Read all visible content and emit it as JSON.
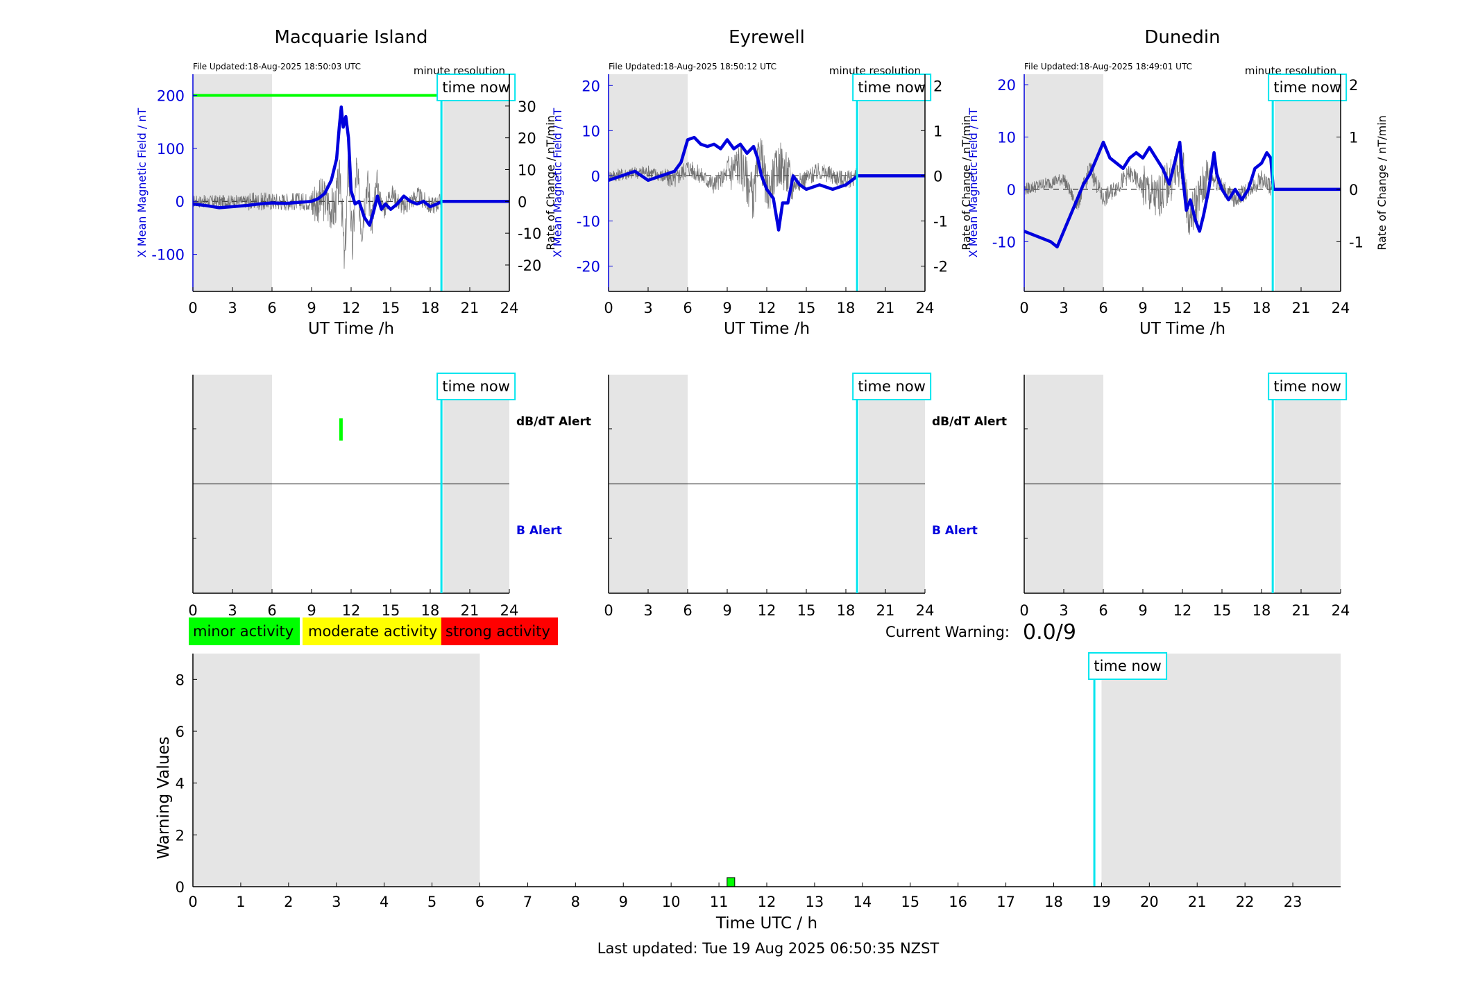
{
  "panels": [
    {
      "station": "Macquarie Island",
      "file_updated": "File Updated:18-Aug-2025 18:50:03 UTC",
      "resolution": "minute resolution",
      "left_ylabel": "X Mean Magnetic Field / nT",
      "right_ylabel": "Rate of Change / nT/min",
      "left_ticks": [
        -100,
        0,
        100,
        200
      ],
      "left_range": [
        -170,
        240
      ],
      "right_ticks": [
        -20,
        -10,
        0,
        10,
        20,
        30
      ],
      "right_range": [
        -28.3,
        40
      ],
      "alert_threshold_nT": 200,
      "alert_labels": [
        "dB/dT Alert",
        "B Alert"
      ],
      "dbdt_alerts": [
        {
          "start": 11.1,
          "end": 11.3
        }
      ],
      "field_trace": [
        [
          0,
          -5
        ],
        [
          1,
          -8
        ],
        [
          2,
          -12
        ],
        [
          3,
          -10
        ],
        [
          4,
          -8
        ],
        [
          5,
          -5
        ],
        [
          6,
          -3
        ],
        [
          7,
          -4
        ],
        [
          8,
          -2
        ],
        [
          9,
          0
        ],
        [
          9.5,
          5
        ],
        [
          10,
          15
        ],
        [
          10.5,
          40
        ],
        [
          10.9,
          80
        ],
        [
          11.1,
          140
        ],
        [
          11.25,
          178
        ],
        [
          11.4,
          140
        ],
        [
          11.6,
          160
        ],
        [
          11.8,
          120
        ],
        [
          12,
          20
        ],
        [
          12.3,
          -5
        ],
        [
          12.6,
          0
        ],
        [
          13,
          -30
        ],
        [
          13.4,
          -45
        ],
        [
          13.7,
          -20
        ],
        [
          14,
          10
        ],
        [
          14.3,
          -15
        ],
        [
          14.6,
          -5
        ],
        [
          15,
          -15
        ],
        [
          15.5,
          -5
        ],
        [
          16,
          10
        ],
        [
          16.5,
          0
        ],
        [
          17,
          -5
        ],
        [
          17.5,
          0
        ],
        [
          18,
          -10
        ],
        [
          18.5,
          -5
        ],
        [
          18.9,
          0
        ],
        [
          24,
          0
        ]
      ],
      "rate_trace": [
        [
          0,
          0
        ],
        [
          9,
          0
        ],
        [
          10,
          0.5
        ],
        [
          10.7,
          -3
        ],
        [
          11.2,
          8
        ],
        [
          11.5,
          -20
        ],
        [
          11.8,
          12
        ],
        [
          12.1,
          -15
        ],
        [
          12.4,
          10
        ],
        [
          12.8,
          -8
        ],
        [
          13.2,
          6
        ],
        [
          13.6,
          -5
        ],
        [
          14,
          4
        ],
        [
          14.5,
          -3
        ],
        [
          15,
          3
        ],
        [
          16,
          -2
        ],
        [
          17,
          2
        ],
        [
          18,
          -1.5
        ],
        [
          18.9,
          0
        ],
        [
          24,
          0
        ]
      ]
    },
    {
      "station": "Eyrewell",
      "file_updated": "File Updated:18-Aug-2025 18:50:12 UTC",
      "resolution": "minute resolution",
      "left_ylabel": "X Mean Magnetic Field / nT",
      "right_ylabel": "Rate of Change / nT/min",
      "left_ticks": [
        -20,
        -10,
        0,
        10,
        20
      ],
      "left_range": [
        -25.6,
        22.5
      ],
      "right_ticks": [
        -2,
        -1,
        0,
        1,
        2
      ],
      "right_range": [
        -2.56,
        2.25
      ],
      "alert_labels": [
        "dB/dT Alert",
        "B Alert"
      ],
      "dbdt_alerts": [],
      "field_trace": [
        [
          0,
          -1
        ],
        [
          1,
          0
        ],
        [
          2,
          1
        ],
        [
          2.5,
          0
        ],
        [
          3,
          -1
        ],
        [
          4,
          0
        ],
        [
          5,
          1
        ],
        [
          5.5,
          3
        ],
        [
          6,
          8
        ],
        [
          6.5,
          8.5
        ],
        [
          7,
          7
        ],
        [
          7.5,
          6.5
        ],
        [
          8,
          7
        ],
        [
          8.5,
          6
        ],
        [
          9,
          8
        ],
        [
          9.5,
          6
        ],
        [
          10,
          7
        ],
        [
          10.5,
          5
        ],
        [
          11,
          6.5
        ],
        [
          11.3,
          4
        ],
        [
          11.6,
          0
        ],
        [
          12,
          -3
        ],
        [
          12.5,
          -5
        ],
        [
          12.9,
          -12
        ],
        [
          13.2,
          -6
        ],
        [
          13.6,
          -6
        ],
        [
          14,
          0
        ],
        [
          14.5,
          -2
        ],
        [
          15,
          -3
        ],
        [
          16,
          -2
        ],
        [
          17,
          -3
        ],
        [
          18,
          -2
        ],
        [
          18.9,
          0
        ],
        [
          24,
          0
        ]
      ],
      "rate_trace": [
        [
          0,
          0
        ],
        [
          3,
          0.1
        ],
        [
          5,
          -0.1
        ],
        [
          6,
          0.2
        ],
        [
          8,
          -0.2
        ],
        [
          10,
          0.3
        ],
        [
          11,
          -0.5
        ],
        [
          11.5,
          0.6
        ],
        [
          12,
          -0.4
        ],
        [
          13,
          0.3
        ],
        [
          14,
          -0.2
        ],
        [
          16,
          0.1
        ],
        [
          18,
          -0.1
        ],
        [
          18.9,
          0
        ],
        [
          24,
          0
        ]
      ]
    },
    {
      "station": "Dunedin",
      "file_updated": "File Updated:18-Aug-2025 18:49:01 UTC",
      "resolution": "minute resolution",
      "left_ylabel": "X Mean Magnetic Field / nT",
      "right_ylabel": "Rate of Change / nT/min",
      "left_ticks": [
        -10,
        0,
        10,
        20
      ],
      "left_range": [
        -19.5,
        22
      ],
      "right_ticks": [
        -1,
        0,
        1,
        2
      ],
      "right_range": [
        -1.95,
        2.2
      ],
      "alert_labels": [],
      "dbdt_alerts": [],
      "field_trace": [
        [
          0,
          -8
        ],
        [
          1,
          -9
        ],
        [
          2,
          -10
        ],
        [
          2.5,
          -11
        ],
        [
          3,
          -8
        ],
        [
          3.5,
          -5
        ],
        [
          4,
          -2
        ],
        [
          4.5,
          1
        ],
        [
          5,
          3
        ],
        [
          5.5,
          6
        ],
        [
          6,
          9
        ],
        [
          6.5,
          6
        ],
        [
          7,
          5
        ],
        [
          7.5,
          4
        ],
        [
          8,
          6
        ],
        [
          8.5,
          7
        ],
        [
          9,
          6
        ],
        [
          9.5,
          8
        ],
        [
          10,
          6
        ],
        [
          10.5,
          4
        ],
        [
          11,
          1
        ],
        [
          11.5,
          6
        ],
        [
          11.8,
          9
        ],
        [
          12,
          3
        ],
        [
          12.3,
          -4
        ],
        [
          12.6,
          -2
        ],
        [
          13,
          -6
        ],
        [
          13.3,
          -8
        ],
        [
          13.6,
          -5
        ],
        [
          14,
          0
        ],
        [
          14.4,
          7
        ],
        [
          14.6,
          3
        ],
        [
          15,
          0
        ],
        [
          15.5,
          -2
        ],
        [
          16,
          0
        ],
        [
          16.5,
          -2
        ],
        [
          17,
          0
        ],
        [
          17.5,
          4
        ],
        [
          18,
          5
        ],
        [
          18.4,
          7
        ],
        [
          18.7,
          6
        ],
        [
          18.9,
          0
        ],
        [
          24,
          0
        ]
      ],
      "rate_trace": [
        [
          0,
          0
        ],
        [
          3,
          0.2
        ],
        [
          4,
          -0.3
        ],
        [
          5,
          0.4
        ],
        [
          6,
          -0.2
        ],
        [
          8,
          0.3
        ],
        [
          10,
          -0.2
        ],
        [
          12,
          0.5
        ],
        [
          12.5,
          -0.6
        ],
        [
          14,
          0.3
        ],
        [
          16,
          -0.2
        ],
        [
          18,
          0.2
        ],
        [
          18.9,
          0
        ],
        [
          24,
          0
        ]
      ]
    }
  ],
  "utc_axis": {
    "xlabel": "UT Time /h",
    "ticks": [
      0,
      3,
      6,
      9,
      12,
      15,
      18,
      21,
      24
    ],
    "range": [
      0,
      24
    ],
    "night_shading": [
      [
        0,
        6
      ],
      [
        19,
        24
      ]
    ],
    "time_now": 18.85,
    "time_now_label": "time now"
  },
  "legend": [
    {
      "label": "minor activity",
      "color": "#00ff00"
    },
    {
      "label": "moderate activity",
      "color": "#ffff00"
    },
    {
      "label": "strong activity",
      "color": "#ff0000"
    }
  ],
  "current_warning": {
    "label": "Current Warning:",
    "value": "0.0/9"
  },
  "chart_data": {
    "type": "bar",
    "title": "",
    "xlabel": "Time UTC / h",
    "ylabel": "Warning Values",
    "xlim": [
      0,
      24
    ],
    "ylim": [
      0,
      9
    ],
    "x_ticks": [
      0,
      1,
      2,
      3,
      4,
      5,
      6,
      7,
      8,
      9,
      10,
      11,
      12,
      13,
      14,
      15,
      16,
      17,
      18,
      19,
      20,
      21,
      22,
      23
    ],
    "y_ticks": [
      0,
      2,
      4,
      6,
      8
    ],
    "night_shading": [
      [
        0,
        6
      ],
      [
        19,
        24
      ]
    ],
    "time_now": 18.85,
    "time_now_label": "time now",
    "bars": [
      {
        "start": 11.17,
        "end": 11.33,
        "value": 0.35,
        "color": "#00ff00"
      }
    ]
  },
  "colors": {
    "field": "#0000dd",
    "rate": "#555555",
    "alert_line": "#00ff00",
    "time_now": "#00e5ee",
    "night": "#e5e5e5",
    "left_axis": "#0000dd"
  },
  "footer": {
    "last_updated": "Last updated: Tue 19 Aug 2025 06:50:35 NZST"
  }
}
